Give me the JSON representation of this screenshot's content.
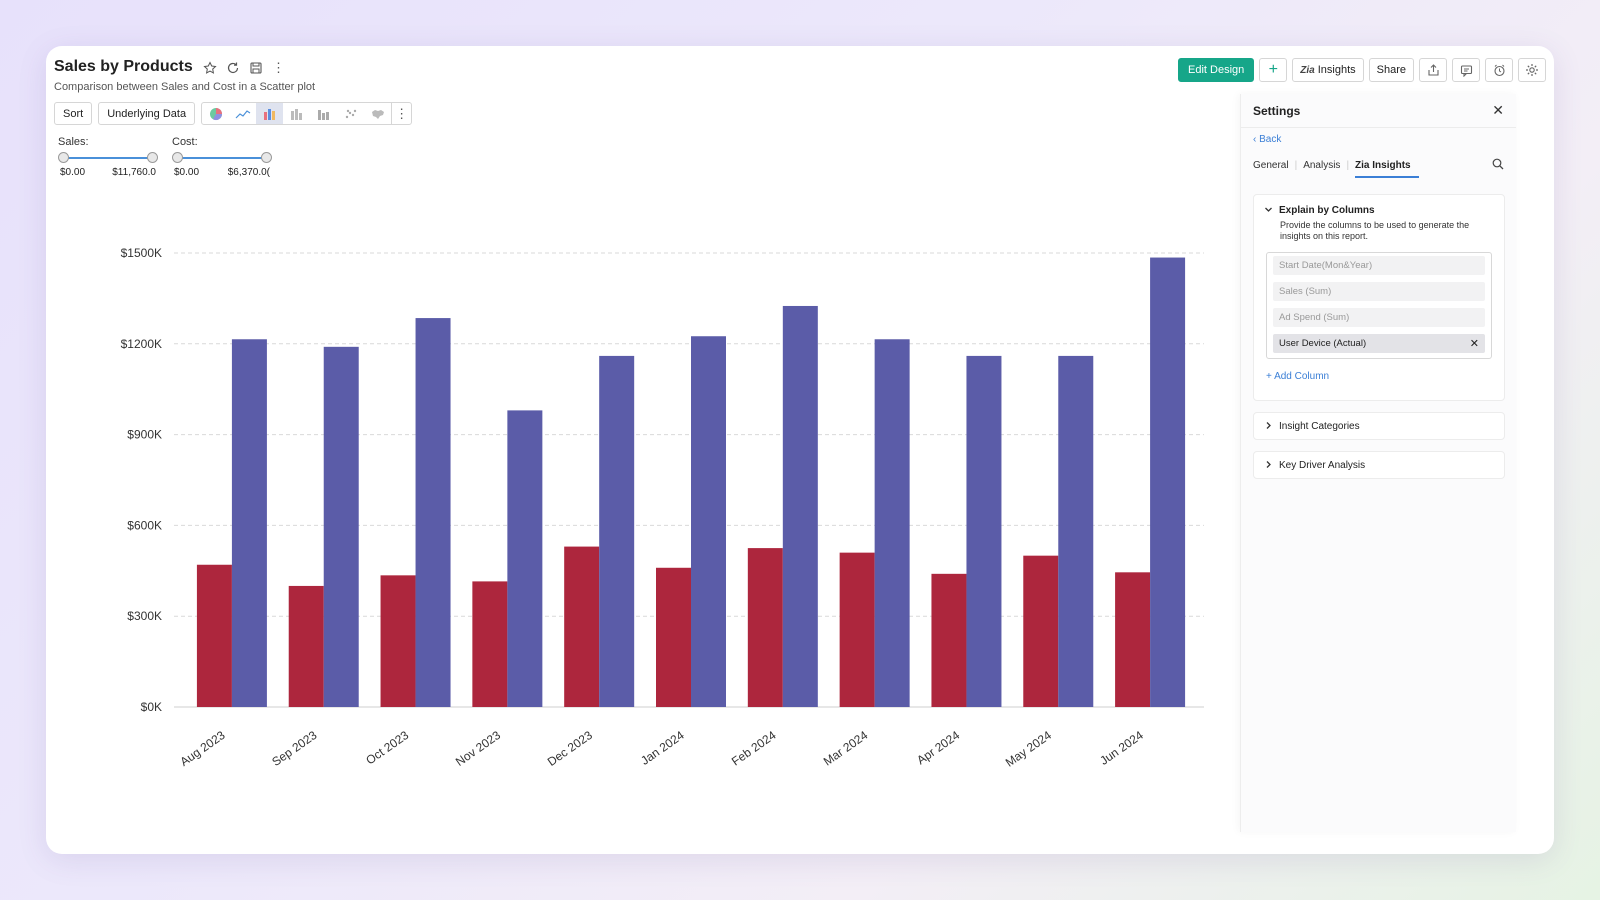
{
  "header": {
    "title": "Sales by Products",
    "subtitle": "Comparison between Sales and Cost in a Scatter plot"
  },
  "toolbar": {
    "sort_label": "Sort",
    "underlying_label": "Underlying Data"
  },
  "filters": [
    {
      "label": "Sales:",
      "min": "$0.00",
      "max": "$11,760.0"
    },
    {
      "label": "Cost:",
      "min": "$0.00",
      "max": "$6,370.0("
    }
  ],
  "actions": {
    "edit_design": "Edit Design",
    "plus": "+",
    "insights_prefix": "Zia",
    "insights": "Insights",
    "share": "Share"
  },
  "settings": {
    "title": "Settings",
    "back": "Back",
    "tabs": [
      "General",
      "Analysis",
      "Zia Insights"
    ],
    "active_tab": "Zia Insights",
    "explain": {
      "title": "Explain by Columns",
      "desc": "Provide the columns to be used to generate the insights on this report.",
      "columns": [
        "Start Date(Mon&Year)",
        "Sales (Sum)",
        "Ad Spend (Sum)",
        "User Device (Actual)"
      ],
      "selected": "User Device (Actual)",
      "add_label": "+ Add Column"
    },
    "sections": [
      "Insight Categories",
      "Key Driver Analysis"
    ]
  },
  "colors": {
    "accent": "#16a689",
    "series_cost": "#ad263d",
    "series_sales": "#5b5ca8",
    "link": "#3b7fd6"
  },
  "chart_data": {
    "type": "bar",
    "categories": [
      "Aug 2023",
      "Sep 2023",
      "Oct 2023",
      "Nov 2023",
      "Dec 2023",
      "Jan 2024",
      "Feb 2024",
      "Mar 2024",
      "Apr 2024",
      "May 2024",
      "Jun 2024"
    ],
    "series": [
      {
        "values": [
          470,
          400,
          435,
          415,
          530,
          460,
          525,
          510,
          440,
          500,
          445
        ],
        "color": "#ad263d"
      },
      {
        "values": [
          1215,
          1190,
          1285,
          980,
          1160,
          1225,
          1325,
          1215,
          1160,
          1160,
          1485
        ],
        "color": "#5b5ca8"
      }
    ],
    "yticks": [
      "$0K",
      "$300K",
      "$600K",
      "$900K",
      "$1200K",
      "$1500K"
    ],
    "ylim": [
      0,
      1500
    ],
    "grid": true
  }
}
